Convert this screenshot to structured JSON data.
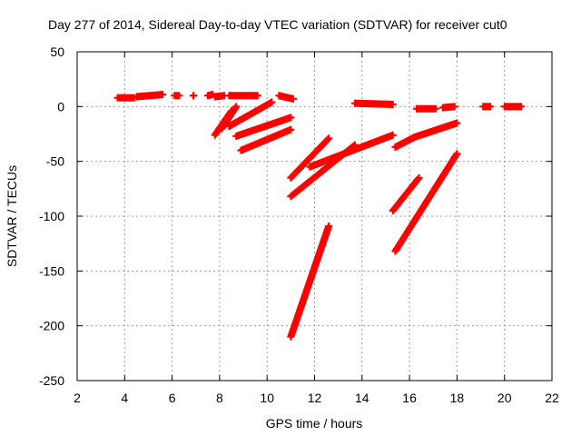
{
  "chart_data": {
    "type": "scatter",
    "title": "Day 277 of 2014, Sidereal Day-to-day VTEC variation (SDTVAR) for receiver cut0",
    "xlabel": "GPS time / hours",
    "ylabel": "SDTVAR / TECUs",
    "xlim": [
      2,
      22
    ],
    "ylim": [
      -250,
      50
    ],
    "xticks": [
      "2",
      "4",
      "6",
      "8",
      "10",
      "12",
      "14",
      "16",
      "18",
      "20",
      "22"
    ],
    "yticks": [
      "50",
      "0",
      "-50",
      "-100",
      "-150",
      "-200",
      "-250"
    ],
    "grid": true,
    "legend": "none",
    "marker": "plus",
    "color": "#ff0000",
    "segments": [
      {
        "x": [
          3.7,
          4.4
        ],
        "y": [
          8,
          8
        ]
      },
      {
        "x": [
          4.5,
          5.6
        ],
        "y": [
          9,
          11
        ]
      },
      {
        "x": [
          6.1,
          6.3
        ],
        "y": [
          10,
          10
        ]
      },
      {
        "x": [
          6.9,
          6.9
        ],
        "y": [
          10,
          10
        ]
      },
      {
        "x": [
          7.5,
          7.7
        ],
        "y": [
          10,
          11
        ]
      },
      {
        "x": [
          7.8,
          8.2
        ],
        "y": [
          9,
          10
        ]
      },
      {
        "x": [
          8.4,
          9.6
        ],
        "y": [
          10,
          10
        ]
      },
      {
        "x": [
          10.5,
          11.1
        ],
        "y": [
          10,
          7
        ]
      },
      {
        "x": [
          13.7,
          15.3
        ],
        "y": [
          3,
          2
        ]
      },
      {
        "x": [
          16.3,
          17.1
        ],
        "y": [
          -2,
          -2
        ]
      },
      {
        "x": [
          17.4,
          17.9
        ],
        "y": [
          -1,
          0
        ]
      },
      {
        "x": [
          19.1,
          19.4
        ],
        "y": [
          0,
          0
        ]
      },
      {
        "x": [
          20.0,
          20.7
        ],
        "y": [
          0,
          0
        ]
      },
      {
        "x": [
          7.8,
          8.5
        ],
        "y": [
          -26,
          -4
        ]
      },
      {
        "x": [
          8.1,
          8.7
        ],
        "y": [
          -20,
          0
        ]
      },
      {
        "x": [
          8.4,
          10.2
        ],
        "y": [
          -18,
          4
        ]
      },
      {
        "x": [
          8.7,
          11.0
        ],
        "y": [
          -27,
          -10
        ]
      },
      {
        "x": [
          8.9,
          11.0
        ],
        "y": [
          -40,
          -21
        ]
      },
      {
        "x": [
          11.0,
          12.6
        ],
        "y": [
          -65,
          -29
        ]
      },
      {
        "x": [
          11.0,
          13.7
        ],
        "y": [
          -82,
          -35
        ]
      },
      {
        "x": [
          11.8,
          15.3
        ],
        "y": [
          -55,
          -26
        ]
      },
      {
        "x": [
          11.0,
          12.6
        ],
        "y": [
          -210,
          -109
        ]
      },
      {
        "x": [
          15.4,
          16.2
        ],
        "y": [
          -37,
          -28
        ]
      },
      {
        "x": [
          16.2,
          18.0
        ],
        "y": [
          -28,
          -15
        ]
      },
      {
        "x": [
          15.3,
          16.4
        ],
        "y": [
          -95,
          -65
        ]
      },
      {
        "x": [
          15.4,
          18.0
        ],
        "y": [
          -132,
          -43
        ]
      }
    ]
  },
  "colors": {
    "marker": "#ff0000",
    "grid": "#a0a0a0",
    "axis": "#000000",
    "background": "#ffffff"
  }
}
